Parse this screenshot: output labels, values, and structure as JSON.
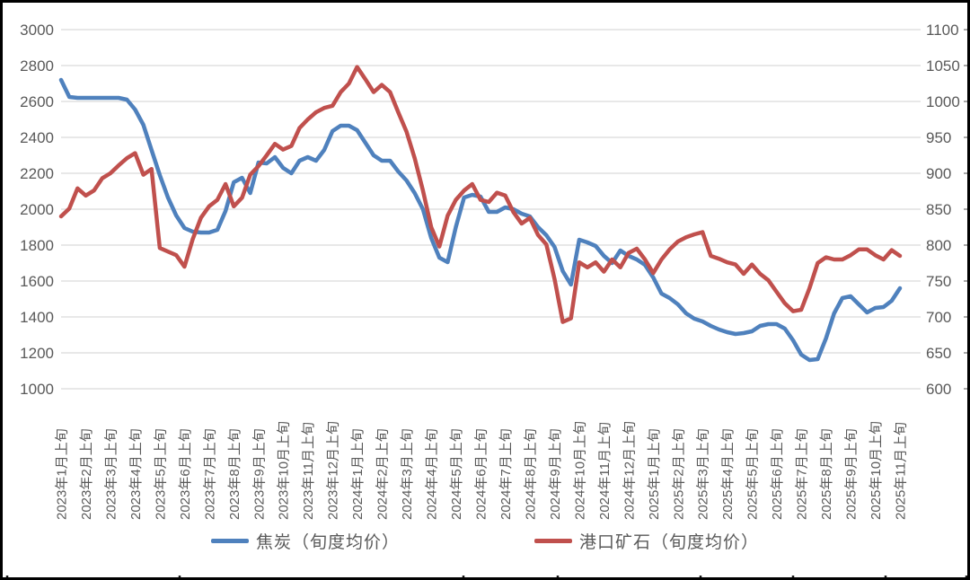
{
  "chart_data": {
    "type": "line",
    "title": "",
    "grid": true,
    "legend_position": "bottom",
    "points_per_month": 3,
    "x_tick_labels": [
      "2023年1月上旬",
      "2023年2月上旬",
      "2023年3月上旬",
      "2023年4月上旬",
      "2023年5月上旬",
      "2023年6月上旬",
      "2023年7月上旬",
      "2023年8月上旬",
      "2023年9月上旬",
      "2023年10月上旬",
      "2023年11月上旬",
      "2023年12月上旬",
      "2024年1月上旬",
      "2024年2月上旬",
      "2024年3月上旬",
      "2024年4月上旬",
      "2024年5月上旬",
      "2024年6月上旬",
      "2024年7月上旬",
      "2024年8月上旬",
      "2024年9月上旬",
      "2024年10月上旬",
      "2024年11月上旬",
      "2024年12月上旬",
      "2025年1月上旬",
      "2025年2月上旬",
      "2025年3月上旬",
      "2025年4月上旬",
      "2025年5月上旬",
      "2025年6月上旬",
      "2025年7月上旬",
      "2025年8月上旬",
      "2025年9月上旬",
      "2025年10月上旬",
      "2025年11月上旬"
    ],
    "left_axis": {
      "min": 1000,
      "max": 3000,
      "step": 200,
      "tick_labels": [
        "1000",
        "1200",
        "1400",
        "1600",
        "1800",
        "2000",
        "2200",
        "2400",
        "2600",
        "2800",
        "3000"
      ]
    },
    "right_axis": {
      "min": 600,
      "max": 1100,
      "step": 50,
      "tick_labels": [
        "600",
        "650",
        "700",
        "750",
        "800",
        "850",
        "900",
        "950",
        "1000",
        "1050",
        "1100"
      ]
    },
    "series": [
      {
        "name": "焦炭（旬度均价）",
        "axis": "left",
        "color": "#4f81bd",
        "values": [
          2720,
          2625,
          2620,
          2620,
          2620,
          2620,
          2620,
          2620,
          2610,
          2555,
          2470,
          2330,
          2190,
          2065,
          1965,
          1895,
          1875,
          1870,
          1870,
          1885,
          1990,
          2150,
          2175,
          2090,
          2260,
          2255,
          2290,
          2230,
          2200,
          2270,
          2290,
          2270,
          2330,
          2435,
          2465,
          2465,
          2440,
          2370,
          2300,
          2270,
          2270,
          2210,
          2160,
          2090,
          2000,
          1840,
          1730,
          1705,
          1900,
          2065,
          2080,
          2070,
          1985,
          1985,
          2010,
          2000,
          1975,
          1960,
          1900,
          1855,
          1790,
          1655,
          1580,
          1830,
          1815,
          1795,
          1740,
          1700,
          1770,
          1740,
          1720,
          1690,
          1620,
          1530,
          1505,
          1470,
          1420,
          1390,
          1375,
          1350,
          1330,
          1315,
          1305,
          1310,
          1320,
          1350,
          1360,
          1360,
          1335,
          1270,
          1190,
          1160,
          1165,
          1280,
          1420,
          1505,
          1515,
          1470,
          1425,
          1450,
          1455,
          1490,
          1560
        ]
      },
      {
        "name": "港口矿石（旬度均价）",
        "axis": "right",
        "color": "#c0504d",
        "values": [
          840,
          851,
          879,
          869,
          876,
          893,
          900,
          911,
          921,
          928,
          898,
          906,
          796,
          791,
          786,
          770,
          808,
          838,
          854,
          863,
          885,
          854,
          866,
          898,
          910,
          925,
          941,
          933,
          938,
          963,
          975,
          985,
          991,
          994,
          1013,
          1025,
          1048,
          1031,
          1013,
          1023,
          1013,
          985,
          958,
          921,
          876,
          825,
          798,
          841,
          863,
          876,
          885,
          863,
          860,
          873,
          869,
          846,
          830,
          838,
          814,
          801,
          753,
          693,
          698,
          776,
          769,
          776,
          763,
          780,
          769,
          789,
          795,
          780,
          761,
          780,
          794,
          805,
          811,
          815,
          818,
          785,
          781,
          776,
          773,
          760,
          773,
          760,
          751,
          735,
          719,
          708,
          710,
          740,
          775,
          783,
          780,
          780,
          786,
          794,
          794,
          786,
          780,
          793,
          785
        ]
      }
    ]
  },
  "legend": {
    "items": [
      {
        "label": "焦炭（旬度均价）",
        "color": "#4f81bd"
      },
      {
        "label": "港口矿石（旬度均价）",
        "color": "#c0504d"
      }
    ]
  },
  "style": {
    "gridline_color": "#d9d9d9",
    "axis_text_color": "#595959",
    "frame_color": "#000000"
  }
}
